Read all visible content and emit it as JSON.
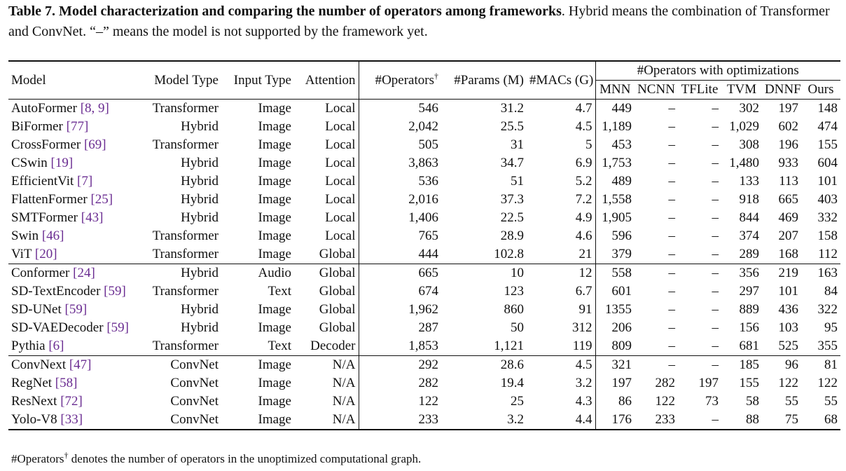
{
  "caption": {
    "bold": "Table 7. Model characterization and comparing the number of operators among frameworks",
    "rest": ". Hybrid means the combination of Transformer and ConvNet. “–” means the model is not supported by the framework yet."
  },
  "headers": {
    "model": "Model",
    "model_type": "Model Type",
    "input_type": "Input Type",
    "attention": "Attention",
    "operators": "#Operators",
    "operators_mark": "†",
    "params": "#Params (M)",
    "macs": "#MACs (G)",
    "opt_group": "#Operators with optimizations",
    "mnn": "MNN",
    "ncnn": "NCNN",
    "tflite": "TFLite",
    "tvm": "TVM",
    "dnnf": "DNNF",
    "ours": "Ours"
  },
  "groups": [
    [
      {
        "name": "AutoFormer",
        "ref": "[8, 9]",
        "type": "Transformer",
        "input": "Image",
        "attn": "Local",
        "ops": "546",
        "params": "31.2",
        "macs": "4.7",
        "mnn": "449",
        "ncnn": "–",
        "tflite": "–",
        "tvm": "302",
        "dnnf": "197",
        "ours": "148"
      },
      {
        "name": "BiFormer",
        "ref": "[77]",
        "type": "Hybrid",
        "input": "Image",
        "attn": "Local",
        "ops": "2,042",
        "params": "25.5",
        "macs": "4.5",
        "mnn": "1,189",
        "ncnn": "–",
        "tflite": "–",
        "tvm": "1,029",
        "dnnf": "602",
        "ours": "474"
      },
      {
        "name": "CrossFormer",
        "ref": "[69]",
        "type": "Transformer",
        "input": "Image",
        "attn": "Local",
        "ops": "505",
        "params": "31",
        "macs": "5",
        "mnn": "453",
        "ncnn": "–",
        "tflite": "–",
        "tvm": "308",
        "dnnf": "196",
        "ours": "155"
      },
      {
        "name": "CSwin",
        "ref": "[19]",
        "type": "Hybrid",
        "input": "Image",
        "attn": "Local",
        "ops": "3,863",
        "params": "34.7",
        "macs": "6.9",
        "mnn": "1,753",
        "ncnn": "–",
        "tflite": "–",
        "tvm": "1,480",
        "dnnf": "933",
        "ours": "604"
      },
      {
        "name": "EfficientVit",
        "ref": "[7]",
        "type": "Hybrid",
        "input": "Image",
        "attn": "Local",
        "ops": "536",
        "params": "51",
        "macs": "5.2",
        "mnn": "489",
        "ncnn": "–",
        "tflite": "–",
        "tvm": "133",
        "dnnf": "113",
        "ours": "101"
      },
      {
        "name": "FlattenFormer",
        "ref": "[25]",
        "type": "Hybrid",
        "input": "Image",
        "attn": "Local",
        "ops": "2,016",
        "params": "37.3",
        "macs": "7.2",
        "mnn": "1,558",
        "ncnn": "–",
        "tflite": "–",
        "tvm": "918",
        "dnnf": "665",
        "ours": "403"
      },
      {
        "name": "SMTFormer",
        "ref": "[43]",
        "type": "Hybrid",
        "input": "Image",
        "attn": "Local",
        "ops": "1,406",
        "params": "22.5",
        "macs": "4.9",
        "mnn": "1,905",
        "ncnn": "–",
        "tflite": "–",
        "tvm": "844",
        "dnnf": "469",
        "ours": "332"
      },
      {
        "name": "Swin",
        "ref": "[46]",
        "type": "Transformer",
        "input": "Image",
        "attn": "Local",
        "ops": "765",
        "params": "28.9",
        "macs": "4.6",
        "mnn": "596",
        "ncnn": "–",
        "tflite": "–",
        "tvm": "374",
        "dnnf": "207",
        "ours": "158"
      },
      {
        "name": "ViT",
        "ref": "[20]",
        "type": "Transformer",
        "input": "Image",
        "attn": "Global",
        "ops": "444",
        "params": "102.8",
        "macs": "21",
        "mnn": "379",
        "ncnn": "–",
        "tflite": "–",
        "tvm": "289",
        "dnnf": "168",
        "ours": "112"
      }
    ],
    [
      {
        "name": "Conformer",
        "ref": "[24]",
        "type": "Hybrid",
        "input": "Audio",
        "attn": "Global",
        "ops": "665",
        "params": "10",
        "macs": "12",
        "mnn": "558",
        "ncnn": "–",
        "tflite": "–",
        "tvm": "356",
        "dnnf": "219",
        "ours": "163"
      },
      {
        "name": "SD-TextEncoder",
        "ref": "[59]",
        "type": "Transformer",
        "input": "Text",
        "attn": "Global",
        "ops": "674",
        "params": "123",
        "macs": "6.7",
        "mnn": "601",
        "ncnn": "–",
        "tflite": "–",
        "tvm": "297",
        "dnnf": "101",
        "ours": "84"
      },
      {
        "name": "SD-UNet",
        "ref": "[59]",
        "type": "Hybrid",
        "input": "Image",
        "attn": "Global",
        "ops": "1,962",
        "params": "860",
        "macs": "91",
        "mnn": "1355",
        "ncnn": "–",
        "tflite": "–",
        "tvm": "889",
        "dnnf": "436",
        "ours": "322"
      },
      {
        "name": "SD-VAEDecoder",
        "ref": "[59]",
        "type": "Hybrid",
        "input": "Image",
        "attn": "Global",
        "ops": "287",
        "params": "50",
        "macs": "312",
        "mnn": "206",
        "ncnn": "–",
        "tflite": "–",
        "tvm": "156",
        "dnnf": "103",
        "ours": "95"
      },
      {
        "name": "Pythia",
        "ref": "[6]",
        "type": "Transformer",
        "input": "Text",
        "attn": "Decoder",
        "ops": "1,853",
        "params": "1,121",
        "macs": "119",
        "mnn": "809",
        "ncnn": "–",
        "tflite": "–",
        "tvm": "681",
        "dnnf": "525",
        "ours": "355"
      }
    ],
    [
      {
        "name": "ConvNext",
        "ref": "[47]",
        "type": "ConvNet",
        "input": "Image",
        "attn": "N/A",
        "ops": "292",
        "params": "28.6",
        "macs": "4.5",
        "mnn": "321",
        "ncnn": "–",
        "tflite": "–",
        "tvm": "185",
        "dnnf": "96",
        "ours": "81"
      },
      {
        "name": "RegNet",
        "ref": "[58]",
        "type": "ConvNet",
        "input": "Image",
        "attn": "N/A",
        "ops": "282",
        "params": "19.4",
        "macs": "3.2",
        "mnn": "197",
        "ncnn": "282",
        "tflite": "197",
        "tvm": "155",
        "dnnf": "122",
        "ours": "122"
      },
      {
        "name": "ResNext",
        "ref": "[72]",
        "type": "ConvNet",
        "input": "Image",
        "attn": "N/A",
        "ops": "122",
        "params": "25",
        "macs": "4.3",
        "mnn": "86",
        "ncnn": "122",
        "tflite": "73",
        "tvm": "58",
        "dnnf": "55",
        "ours": "55"
      },
      {
        "name": "Yolo-V8",
        "ref": "[33]",
        "type": "ConvNet",
        "input": "Image",
        "attn": "N/A",
        "ops": "233",
        "params": "3.2",
        "macs": "4.4",
        "mnn": "176",
        "ncnn": "233",
        "tflite": "–",
        "tvm": "88",
        "dnnf": "75",
        "ours": "68"
      }
    ]
  ],
  "footnote": {
    "lead": "#Operators",
    "mark": "†",
    "text": " denotes the number of operators in the unoptimized computational graph."
  }
}
